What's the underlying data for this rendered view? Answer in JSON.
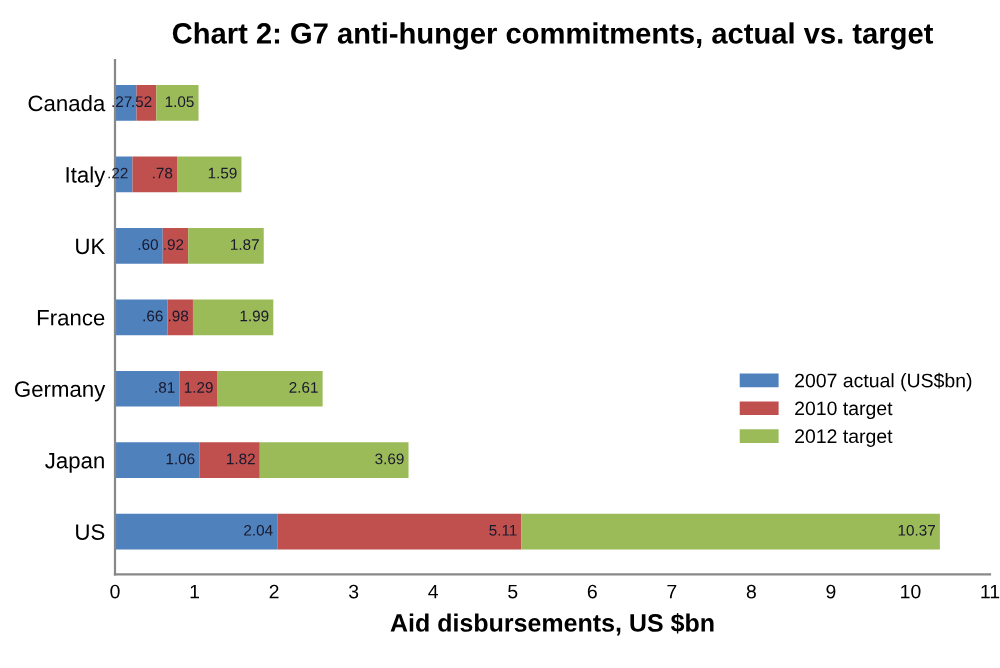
{
  "chart_data": {
    "type": "bar",
    "title": "Chart 2: G7 anti-hunger commitments, actual vs. target",
    "xlabel": "Aid disbursements, US $bn",
    "orientation": "horizontal",
    "stacked": true,
    "categories": [
      "Canada",
      "Italy",
      "UK",
      "France",
      "Germany",
      "Japan",
      "US"
    ],
    "series": [
      {
        "name": "2007 actual (US$bn)",
        "color": "#4f81bd",
        "values": [
          0.27,
          0.22,
          0.6,
          0.66,
          0.81,
          1.06,
          2.04
        ]
      },
      {
        "name": "2010 target",
        "color": "#c0504d",
        "values": [
          0.25,
          0.56,
          0.32,
          0.32,
          0.48,
          0.76,
          3.07
        ]
      },
      {
        "name": "2012 target",
        "color": "#9bbb59",
        "values": [
          0.53,
          0.81,
          0.95,
          1.01,
          1.32,
          1.87,
          5.26
        ]
      }
    ],
    "annotations": [
      {
        "text": ".27",
        "x": 0.27,
        "y": "Canada"
      },
      {
        "text": ".52",
        "x": 0.52,
        "y": "Canada"
      },
      {
        "text": "1.05",
        "x": 1.05,
        "y": "Canada"
      },
      {
        "text": ".22",
        "x": 0.22,
        "y": "Italy"
      },
      {
        "text": ".78",
        "x": 0.78,
        "y": "Italy"
      },
      {
        "text": "1.59",
        "x": 1.59,
        "y": "Italy"
      },
      {
        "text": ".60",
        "x": 0.6,
        "y": "UK"
      },
      {
        "text": ".92",
        "x": 0.92,
        "y": "UK"
      },
      {
        "text": "1.87",
        "x": 1.87,
        "y": "UK"
      },
      {
        "text": ".66",
        "x": 0.66,
        "y": "France"
      },
      {
        "text": ".98",
        "x": 0.98,
        "y": "France"
      },
      {
        "text": "1.99",
        "x": 1.99,
        "y": "France"
      },
      {
        "text": ".81",
        "x": 0.81,
        "y": "Germany"
      },
      {
        "text": "1.29",
        "x": 1.29,
        "y": "Germany"
      },
      {
        "text": "2.61",
        "x": 2.61,
        "y": "Germany"
      },
      {
        "text": "1.06",
        "x": 1.06,
        "y": "Japan"
      },
      {
        "text": "1.82",
        "x": 1.82,
        "y": "Japan"
      },
      {
        "text": "3.69",
        "x": 3.69,
        "y": "Japan"
      },
      {
        "text": "2.04",
        "x": 2.04,
        "y": "US"
      },
      {
        "text": "5.11",
        "x": 5.11,
        "y": "US"
      },
      {
        "text": "10.37",
        "x": 10.37,
        "y": "US"
      }
    ],
    "xlim": [
      0,
      11
    ],
    "xticks": [
      0,
      1,
      2,
      3,
      4,
      5,
      6,
      7,
      8,
      9,
      10,
      11
    ],
    "grid": false,
    "legend": "right"
  }
}
